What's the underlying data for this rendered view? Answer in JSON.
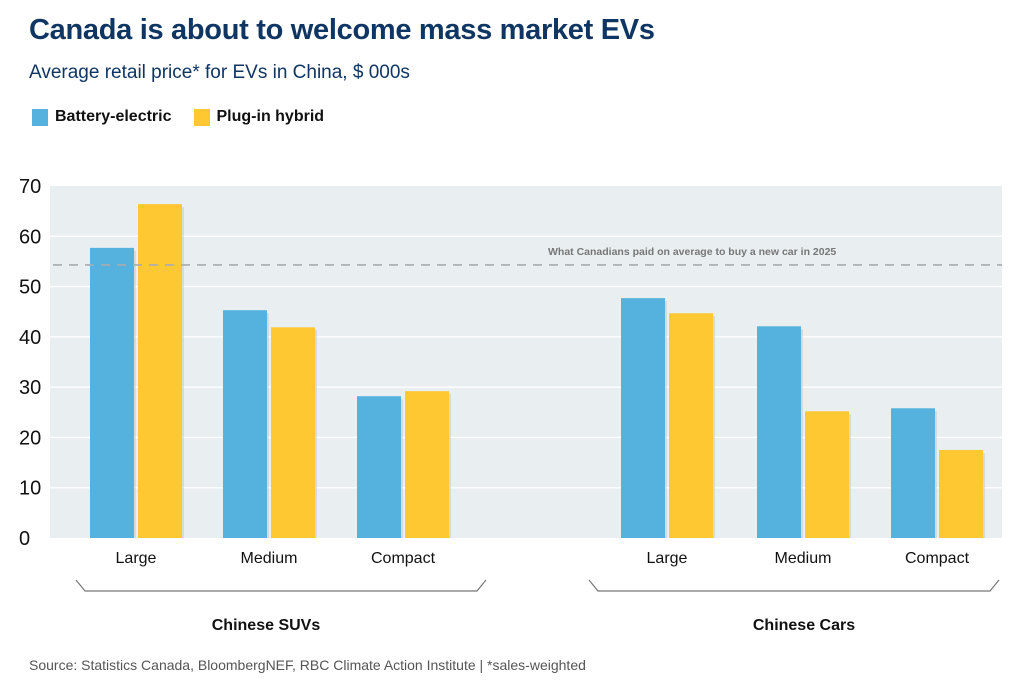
{
  "header": {
    "title": "Canada is about to welcome mass market EVs",
    "subtitle": "Average retail price* for EVs in China, $ 000s"
  },
  "footer": {
    "source": "Source: Statistics Canada, BloombergNEF, RBC Climate Action Institute | *sales-weighted"
  },
  "colors": {
    "battery_electric": "#55b2de",
    "plug_in_hybrid": "#fec832",
    "plot_background": "#e9eef1",
    "gridline": "#ffffff",
    "reference_line": "#a8acaf",
    "title": "#0f3563"
  },
  "chart_data": {
    "type": "bar",
    "title": "Canada is about to welcome mass market EVs",
    "subtitle": "Average retail price* for EVs in China, $ 000s",
    "xlabel": "",
    "ylabel": "",
    "ylim": [
      0,
      70
    ],
    "yticks": [
      0,
      10,
      20,
      30,
      40,
      50,
      60,
      70
    ],
    "grid": true,
    "legend": {
      "placement": "top-left",
      "entries": [
        "Battery-electric",
        "Plug-in hybrid"
      ]
    },
    "groups": [
      {
        "name": "Chinese SUVs",
        "categories": [
          "Large",
          "Medium",
          "Compact"
        ],
        "series": [
          {
            "name": "Battery-electric",
            "values": [
              57.7,
              45.3,
              28.2
            ]
          },
          {
            "name": "Plug-in hybrid",
            "values": [
              66.4,
              41.9,
              29.2
            ]
          }
        ]
      },
      {
        "name": "Chinese Cars",
        "categories": [
          "Large",
          "Medium",
          "Compact"
        ],
        "series": [
          {
            "name": "Battery-electric",
            "values": [
              47.7,
              42.1,
              25.8
            ]
          },
          {
            "name": "Plug-in hybrid",
            "values": [
              44.7,
              25.2,
              17.5
            ]
          }
        ]
      }
    ],
    "annotations": [
      {
        "type": "reference-line",
        "value": 54.3,
        "label": "What Canadians paid on average to buy a new car in 2025"
      }
    ]
  }
}
